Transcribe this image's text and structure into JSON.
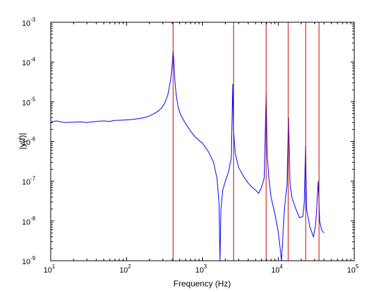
{
  "chart_data": {
    "type": "line",
    "xlabel": "Frequency (Hz)",
    "ylabel": "|y(f)|",
    "x_scale": "log",
    "y_scale": "log",
    "xlim": [
      10,
      100000
    ],
    "ylim": [
      1e-09,
      0.001
    ],
    "grid": false,
    "x_ticks": [
      {
        "value": 10,
        "base": "10",
        "exp": "1"
      },
      {
        "value": 100,
        "base": "10",
        "exp": "2"
      },
      {
        "value": 1000,
        "base": "10",
        "exp": "3"
      },
      {
        "value": 10000,
        "base": "10",
        "exp": "4"
      },
      {
        "value": 100000,
        "base": "10",
        "exp": "5"
      }
    ],
    "y_ticks": [
      {
        "value": 1e-09,
        "base": "10",
        "exp": "-9"
      },
      {
        "value": 1e-08,
        "base": "10",
        "exp": "-8"
      },
      {
        "value": 1e-07,
        "base": "10",
        "exp": "-7"
      },
      {
        "value": 1e-06,
        "base": "10",
        "exp": "-6"
      },
      {
        "value": 1e-05,
        "base": "10",
        "exp": "-5"
      },
      {
        "value": 0.0001,
        "base": "10",
        "exp": "-4"
      },
      {
        "value": 0.001,
        "base": "10",
        "exp": "-3"
      }
    ],
    "series": [
      {
        "color": "#0000ff",
        "points": [
          [
            10,
            3.1e-06
          ],
          [
            12,
            3.3e-06
          ],
          [
            15,
            3e-06
          ],
          [
            20,
            3.05e-06
          ],
          [
            25,
            3.1e-06
          ],
          [
            30,
            3e-06
          ],
          [
            40,
            3.2e-06
          ],
          [
            50,
            3.3e-06
          ],
          [
            60,
            3.2e-06
          ],
          [
            70,
            3.4e-06
          ],
          [
            80,
            3.4e-06
          ],
          [
            100,
            3.5e-06
          ],
          [
            120,
            3.6e-06
          ],
          [
            150,
            3.8e-06
          ],
          [
            180,
            4.1e-06
          ],
          [
            200,
            4.4e-06
          ],
          [
            230,
            5e-06
          ],
          [
            260,
            5.8e-06
          ],
          [
            290,
            7e-06
          ],
          [
            320,
            9.5e-06
          ],
          [
            350,
            1.5e-05
          ],
          [
            380,
            3.5e-05
          ],
          [
            400,
            9e-05
          ],
          [
            410,
            0.00019
          ],
          [
            420,
            0.0001
          ],
          [
            430,
            4e-05
          ],
          [
            450,
            1.5e-05
          ],
          [
            480,
            7e-06
          ],
          [
            520,
            4.5e-06
          ],
          [
            600,
            2.8e-06
          ],
          [
            700,
            1.8e-06
          ],
          [
            800,
            1.3e-06
          ],
          [
            1000,
            9e-07
          ],
          [
            1200,
            5.5e-07
          ],
          [
            1400,
            3e-07
          ],
          [
            1550,
            1.2e-07
          ],
          [
            1650,
            3e-08
          ],
          [
            1700,
            1e-09
          ],
          [
            1750,
            2e-08
          ],
          [
            1850,
            6e-08
          ],
          [
            2000,
            1e-07
          ],
          [
            2200,
            1.7e-07
          ],
          [
            2400,
            4e-07
          ],
          [
            2500,
            2.8e-05
          ],
          [
            2560,
            2e-06
          ],
          [
            2700,
            5e-07
          ],
          [
            3000,
            2.2e-07
          ],
          [
            3500,
            1.3e-07
          ],
          [
            4000,
            9e-08
          ],
          [
            4500,
            7e-08
          ],
          [
            5000,
            6e-08
          ],
          [
            5500,
            5e-08
          ],
          [
            6000,
            7e-08
          ],
          [
            6500,
            1.2e-07
          ],
          [
            6900,
            1.5e-05
          ],
          [
            7100,
            5e-07
          ],
          [
            7500,
            1.2e-07
          ],
          [
            8000,
            4e-08
          ],
          [
            9000,
            1.5e-08
          ],
          [
            10000,
            5e-09
          ],
          [
            11000,
            1e-09
          ],
          [
            12000,
            2e-08
          ],
          [
            13000,
            8e-08
          ],
          [
            13600,
            4e-06
          ],
          [
            14200,
            1e-07
          ],
          [
            15000,
            4e-08
          ],
          [
            17000,
            2e-08
          ],
          [
            19000,
            1.2e-08
          ],
          [
            21000,
            1.3e-08
          ],
          [
            22000,
            3e-08
          ],
          [
            22800,
            8e-07
          ],
          [
            23500,
            2e-08
          ],
          [
            26000,
            7e-09
          ],
          [
            29000,
            4e-09
          ],
          [
            31000,
            8e-09
          ],
          [
            33500,
            1e-07
          ],
          [
            35000,
            1e-08
          ],
          [
            37000,
            6e-09
          ],
          [
            40000,
            5e-09
          ]
        ]
      },
      {
        "color": "#cc0000",
        "type": "vlines",
        "x": [
          410,
          2570,
          6900,
          13500,
          22900,
          34300
        ]
      }
    ]
  }
}
